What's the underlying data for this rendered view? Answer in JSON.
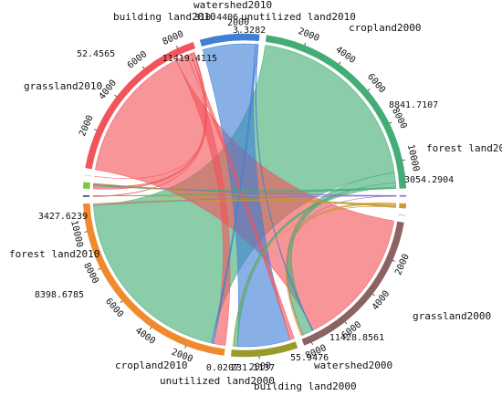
{
  "chart_data": {
    "type": "chord",
    "title": "",
    "tick_step": 2000,
    "groups": [
      {
        "name": "cropland2000",
        "total": 8841.7107,
        "color": "#f2545b",
        "label_shown": "cropland2000",
        "total_shown": "8841.7107"
      },
      {
        "name": "forest land2000",
        "total": 3054.2904,
        "color": "#3f7fd6",
        "label_shown": "forest land2000",
        "total_shown": "3054.2904"
      },
      {
        "name": "grassland2000",
        "total": 11428.8561,
        "color": "#43ad75",
        "label_shown": "grassland2000",
        "total_shown": "11428.8561"
      },
      {
        "name": "watershed2000",
        "total": 55.9476,
        "color": "#8f6fbf",
        "label_shown": "watershed2000",
        "total_shown": "55.9476"
      },
      {
        "name": "building land2000",
        "total": 231.1137,
        "color": "#c79a2e",
        "label_shown": "building land2000",
        "total_shown": "231.1137"
      },
      {
        "name": "unutilized land2000",
        "total": 0.0207,
        "color": "#999999",
        "label_shown": "unutilized land2000",
        "total_shown": "0.0207"
      },
      {
        "name": "cropland2010",
        "total": 8398.6785,
        "color": "#8c6262",
        "label_shown": "cropland2010",
        "total_shown": "8398.6785"
      },
      {
        "name": "forest land2010",
        "total": 3427.6239,
        "color": "#9a9a28",
        "label_shown": "forest land2010",
        "total_shown": "3427.6239"
      },
      {
        "name": "grassland2010",
        "total": 11419.4115,
        "color": "#f08a2c",
        "label_shown": "grassland2010",
        "total_shown": "11419.4115"
      },
      {
        "name": "building land2010",
        "total": 52.4565,
        "color": "#2f4fa0",
        "label_shown": "building land2010",
        "total_shown": "52.4565"
      },
      {
        "name": "watershed2010",
        "total": 310.4406,
        "color": "#7ac943",
        "label_shown": "watershed2010",
        "total_shown": "310.4406"
      },
      {
        "name": "unutilized land2010",
        "total": 3.3282,
        "color": "#c9c9c9",
        "label_shown": "unutilized land2010",
        "total_shown": "3.3282"
      }
    ],
    "flows": [
      {
        "source": "cropland2000",
        "target": "cropland2010",
        "value": 7650
      },
      {
        "source": "cropland2000",
        "target": "grassland2010",
        "value": 650
      },
      {
        "source": "cropland2000",
        "target": "forest land2010",
        "value": 230
      },
      {
        "source": "cropland2000",
        "target": "watershed2010",
        "value": 160
      },
      {
        "source": "cropland2000",
        "target": "building land2010",
        "value": 30
      },
      {
        "source": "cropland2000",
        "target": "unutilized land2010",
        "value": 1.5
      },
      {
        "source": "forest land2000",
        "target": "forest land2010",
        "value": 2900
      },
      {
        "source": "forest land2000",
        "target": "grassland2010",
        "value": 110
      },
      {
        "source": "forest land2000",
        "target": "cropland2010",
        "value": 40
      },
      {
        "source": "grassland2000",
        "target": "grassland2010",
        "value": 10550
      },
      {
        "source": "grassland2000",
        "target": "cropland2010",
        "value": 560
      },
      {
        "source": "grassland2000",
        "target": "forest land2010",
        "value": 230
      },
      {
        "source": "grassland2000",
        "target": "watershed2010",
        "value": 70
      },
      {
        "source": "grassland2000",
        "target": "building land2010",
        "value": 15
      },
      {
        "source": "watershed2000",
        "target": "watershed2010",
        "value": 40
      },
      {
        "source": "watershed2000",
        "target": "grassland2010",
        "value": 10
      },
      {
        "source": "watershed2000",
        "target": "cropland2010",
        "value": 5
      },
      {
        "source": "building land2000",
        "target": "cropland2010",
        "value": 110
      },
      {
        "source": "building land2000",
        "target": "grassland2010",
        "value": 85
      },
      {
        "source": "building land2000",
        "target": "watershed2010",
        "value": 25
      },
      {
        "source": "building land2000",
        "target": "forest land2010",
        "value": 6
      },
      {
        "source": "building land2000",
        "target": "building land2010",
        "value": 5
      }
    ]
  }
}
